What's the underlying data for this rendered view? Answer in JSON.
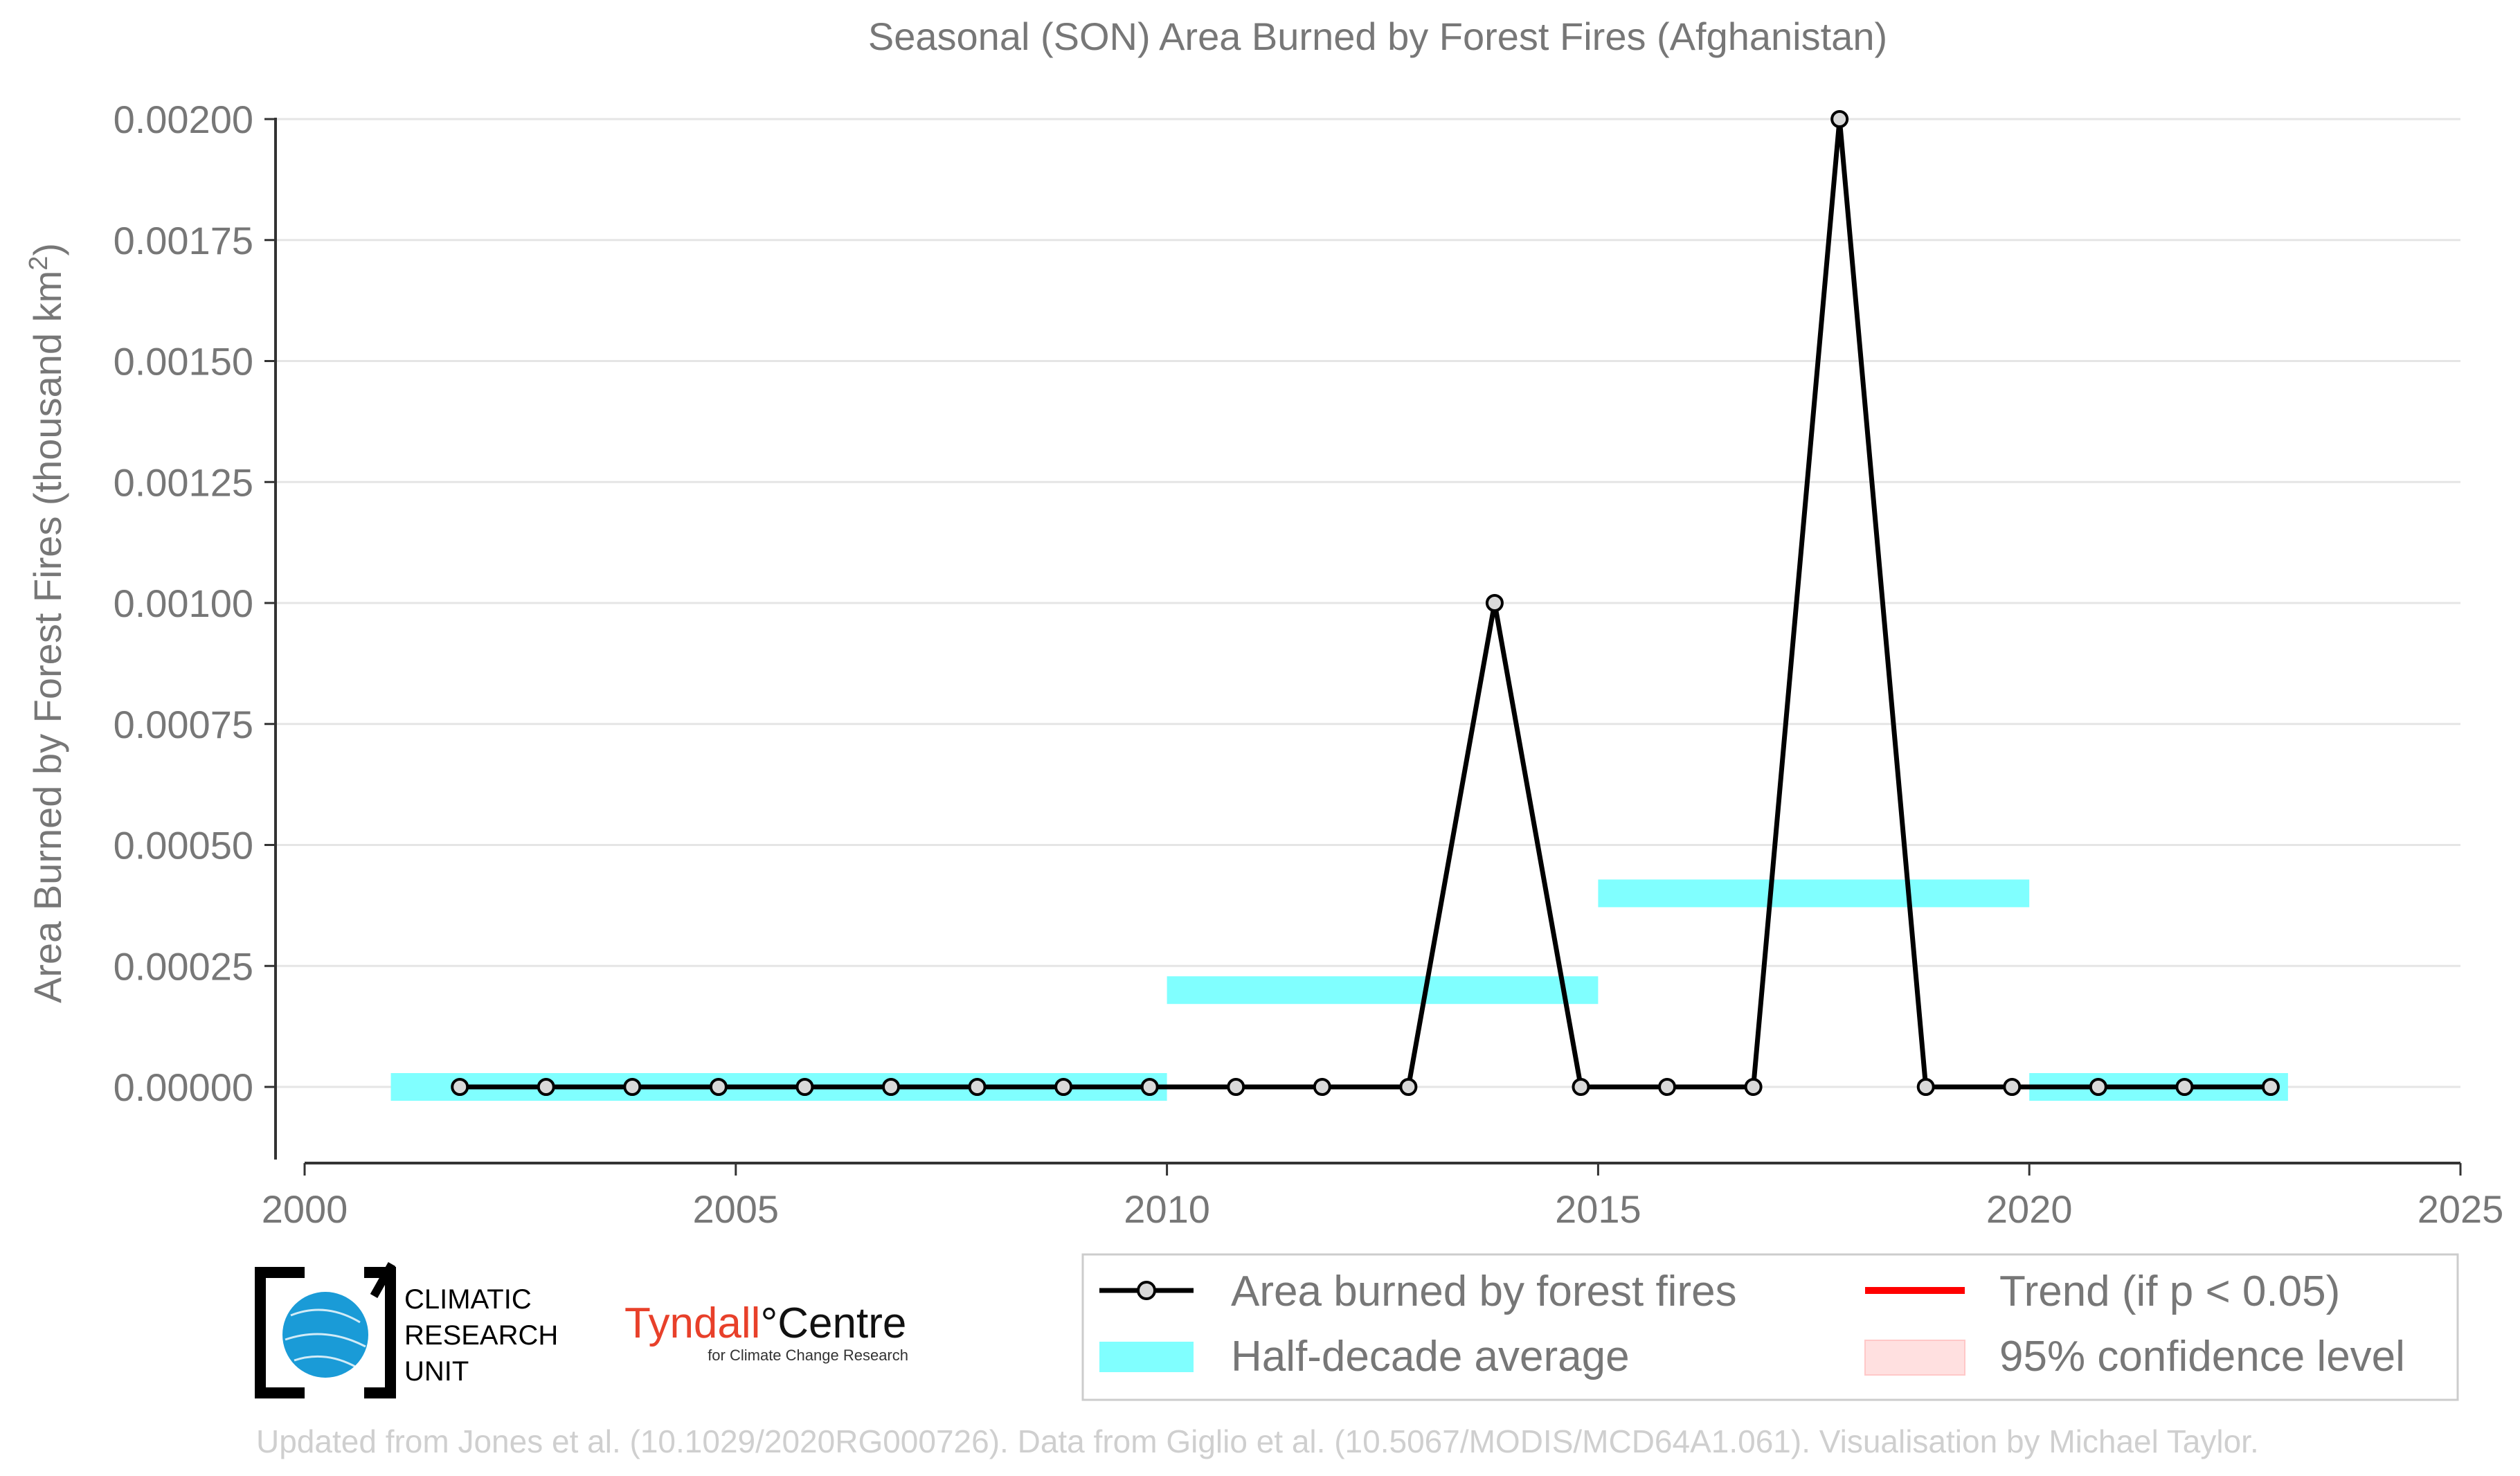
{
  "chart_data": {
    "type": "line",
    "title": "Seasonal (SON) Area Burned by Forest Fires (Afghanistan)",
    "xlabel": "",
    "ylabel": "Area Burned by Forest Fires (thousand km",
    "ylabel_sup": "2",
    "ylabel_end": ")",
    "xlim": [
      2000,
      2025
    ],
    "ylim": [
      -0.00015,
      0.002
    ],
    "x_ticks": [
      2000,
      2005,
      2010,
      2015,
      2020,
      2025
    ],
    "y_ticks": [
      "0.00000",
      "0.00025",
      "0.00050",
      "0.00075",
      "0.00100",
      "0.00125",
      "0.00150",
      "0.00175",
      "0.00200"
    ],
    "grid": "horizontal",
    "legend_position": "bottom-right",
    "series": [
      {
        "name": "Area burned by forest fires",
        "color": "#000000",
        "marker_fill": "#d9d9d9",
        "x": [
          2001.8,
          2002.8,
          2003.8,
          2004.8,
          2005.8,
          2006.8,
          2007.8,
          2008.8,
          2009.8,
          2010.8,
          2011.8,
          2012.8,
          2013.8,
          2014.8,
          2015.8,
          2016.8,
          2017.8,
          2018.8,
          2019.8,
          2020.8,
          2021.8,
          2022.8
        ],
        "y": [
          0,
          0,
          0,
          0,
          0,
          0,
          0,
          0,
          0,
          0,
          0,
          0,
          0.001,
          0,
          0,
          0,
          0.002,
          0,
          0,
          0,
          0,
          0
        ]
      }
    ],
    "half_decade_average": {
      "name": "Half-decade average",
      "color": "#80ffff",
      "segments": [
        {
          "x_start": 2001,
          "x_end": 2010,
          "value": 0
        },
        {
          "x_start": 2010,
          "x_end": 2015,
          "value": 0.0002
        },
        {
          "x_start": 2015,
          "x_end": 2020,
          "value": 0.0004
        },
        {
          "x_start": 2020,
          "x_end": 2023,
          "value": 0
        }
      ]
    },
    "legend": [
      {
        "label": "Area burned by forest fires",
        "kind": "line-marker",
        "color": "#000000"
      },
      {
        "label": "Trend (if p < 0.05)",
        "kind": "line",
        "color": "#ff0000"
      },
      {
        "label": "Half-decade average",
        "kind": "band",
        "color": "#80ffff"
      },
      {
        "label": "95% confidence level",
        "kind": "band",
        "color": "#ffe0e0"
      }
    ]
  },
  "logos": {
    "cru": [
      "CLIMATIC",
      "RESEARCH",
      "UNIT"
    ],
    "tyndall_main": "Tyndall",
    "tyndall_degree": "°",
    "tyndall_rest": "Centre",
    "tyndall_sub": "for Climate Change Research"
  },
  "footer": "Updated from Jones et al. (10.1029/2020RG000726). Data from Giglio et al. (10.5067/MODIS/MCD64A1.061). Visualisation by Michael Taylor."
}
